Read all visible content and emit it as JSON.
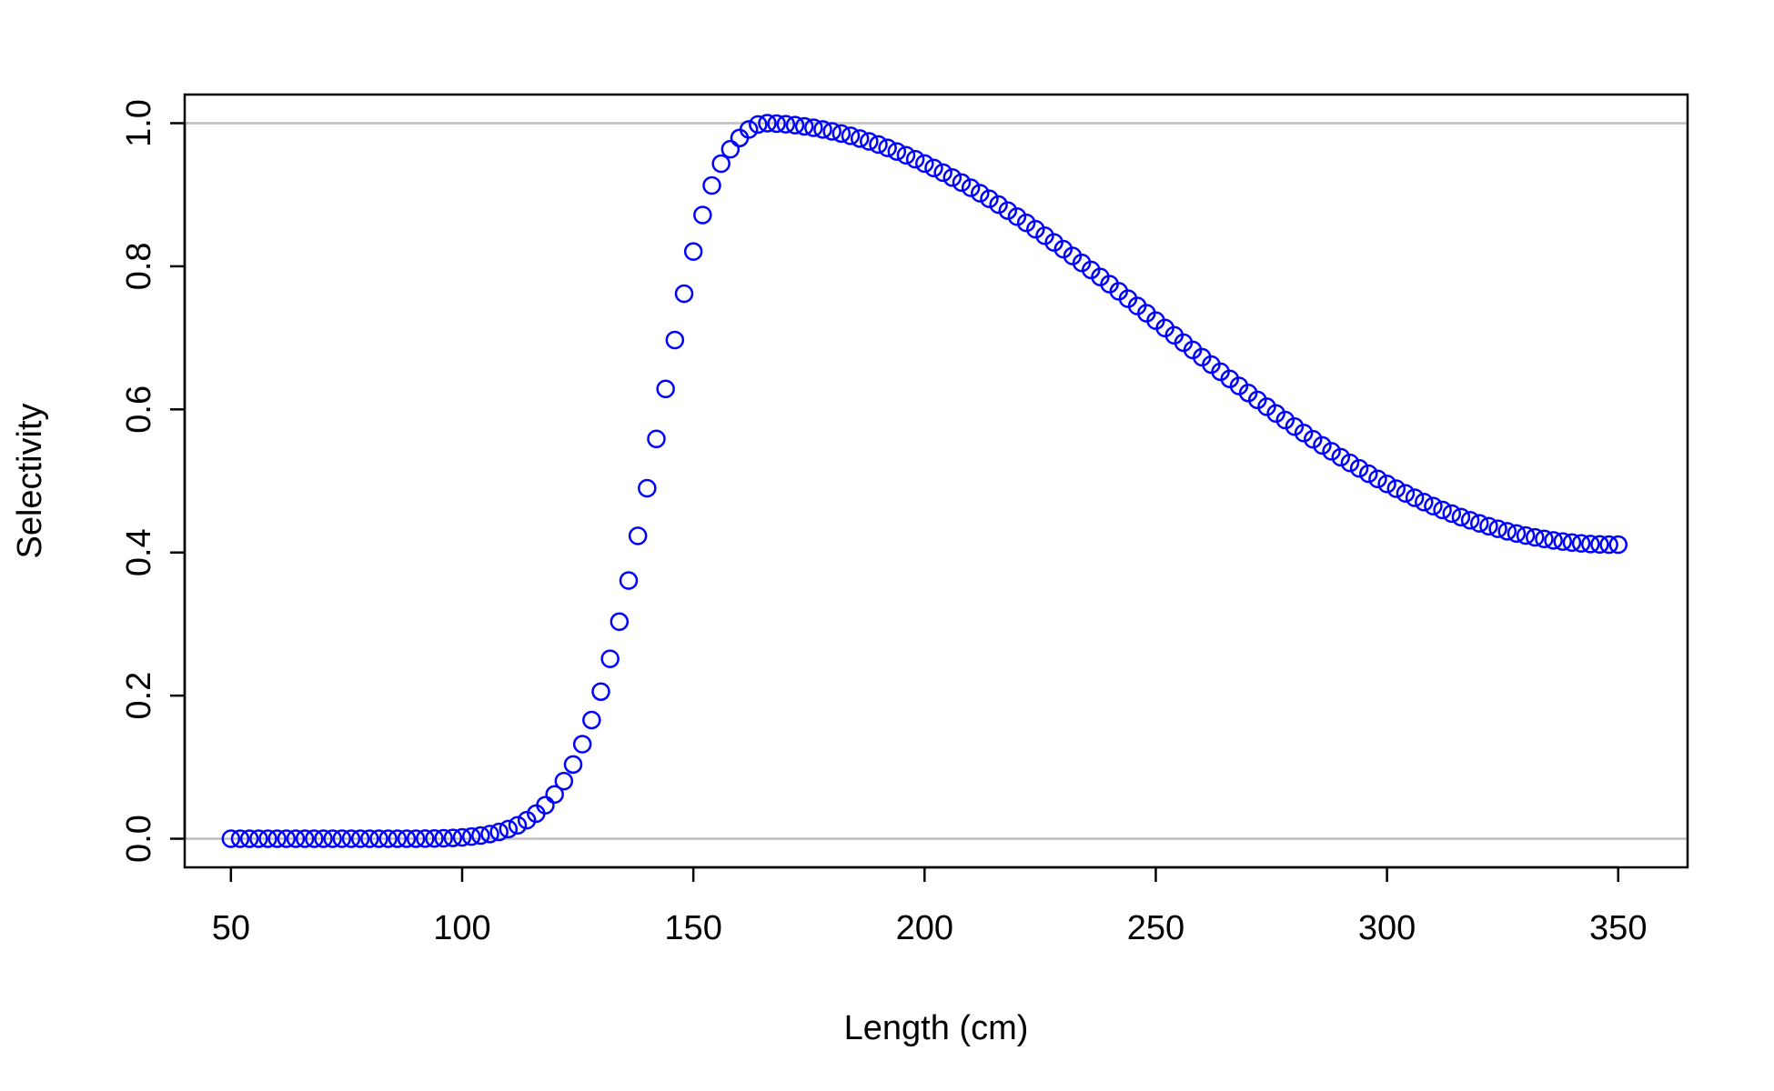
{
  "chart_data": {
    "type": "scatter",
    "title": "",
    "xlabel": "Length (cm)",
    "ylabel": "Selectivity",
    "xlim": [
      40,
      365
    ],
    "ylim": [
      -0.04,
      1.04
    ],
    "xticks": [
      50,
      100,
      150,
      200,
      250,
      300,
      350
    ],
    "xtick_labels": [
      "50",
      "100",
      "150",
      "200",
      "250",
      "300",
      "350"
    ],
    "yticks": [
      0.0,
      0.2,
      0.4,
      0.6,
      0.8,
      1.0
    ],
    "ytick_labels": [
      "0.0",
      "0.2",
      "0.4",
      "0.6",
      "0.8",
      "1.0"
    ],
    "reference_lines_y": [
      0,
      1
    ],
    "grid": false,
    "legend": "none",
    "marker": "open-circle",
    "point_color": "#0000ff",
    "reference_line_color": "#bebebe",
    "series": [
      {
        "x": [
          50,
          52,
          54,
          56,
          58,
          60,
          62,
          64,
          66,
          68,
          70,
          72,
          74,
          76,
          78,
          80,
          82,
          84,
          86,
          88,
          90,
          92,
          94,
          96,
          98,
          100,
          102,
          104,
          106,
          108,
          110,
          112,
          114,
          116,
          118,
          120,
          122,
          124,
          126,
          128,
          130,
          132,
          134,
          136,
          138,
          140,
          142,
          144,
          146,
          148,
          150,
          152,
          154,
          156,
          158,
          160,
          162,
          164,
          166,
          168,
          170,
          172,
          174,
          176,
          178,
          180,
          182,
          184,
          186,
          188,
          190,
          192,
          194,
          196,
          198,
          200,
          202,
          204,
          206,
          208,
          210,
          212,
          214,
          216,
          218,
          220,
          222,
          224,
          226,
          228,
          230,
          232,
          234,
          236,
          238,
          240,
          242,
          244,
          246,
          248,
          250,
          252,
          254,
          256,
          258,
          260,
          262,
          264,
          266,
          268,
          270,
          272,
          274,
          276,
          278,
          280,
          282,
          284,
          286,
          288,
          290,
          292,
          294,
          296,
          298,
          300,
          302,
          304,
          306,
          308,
          310,
          312,
          314,
          316,
          318,
          320,
          322,
          324,
          326,
          328,
          330,
          332,
          334,
          336,
          338,
          340,
          342,
          344,
          346,
          348,
          350
        ],
        "y": [
          0.0,
          0.0,
          0.0,
          0.0,
          0.0,
          0.0,
          0.0,
          0.0,
          0.0,
          0.0,
          0.0,
          0.0,
          0.0,
          0.0,
          0.0,
          0.0,
          0.0,
          0.0,
          0.0,
          0.0,
          0.0001,
          0.0002,
          0.0004,
          0.0007,
          0.0012,
          0.0019,
          0.003,
          0.0045,
          0.0066,
          0.0095,
          0.0135,
          0.0188,
          0.0259,
          0.0351,
          0.0469,
          0.0619,
          0.0806,
          0.1038,
          0.1321,
          0.1659,
          0.2056,
          0.2514,
          0.3033,
          0.3608,
          0.4233,
          0.4898,
          0.5588,
          0.6286,
          0.6969,
          0.7617,
          0.8206,
          0.8716,
          0.9129,
          0.9434,
          0.9636,
          0.9794,
          0.9912,
          0.9982,
          0.9999,
          0.9994,
          0.9985,
          0.9972,
          0.9956,
          0.9936,
          0.9913,
          0.9886,
          0.9856,
          0.9823,
          0.9786,
          0.9745,
          0.9702,
          0.9655,
          0.9605,
          0.9552,
          0.9496,
          0.9436,
          0.9374,
          0.9309,
          0.9241,
          0.917,
          0.9097,
          0.9021,
          0.8943,
          0.8862,
          0.8779,
          0.8694,
          0.8607,
          0.8518,
          0.8427,
          0.8334,
          0.824,
          0.8145,
          0.8048,
          0.795,
          0.7851,
          0.7751,
          0.765,
          0.7548,
          0.7446,
          0.7344,
          0.7241,
          0.7138,
          0.7036,
          0.6933,
          0.6831,
          0.6729,
          0.6627,
          0.6527,
          0.6427,
          0.6328,
          0.623,
          0.6133,
          0.6037,
          0.5943,
          0.5851,
          0.576,
          0.567,
          0.5583,
          0.5497,
          0.5414,
          0.5332,
          0.5253,
          0.5176,
          0.5101,
          0.5029,
          0.4959,
          0.4892,
          0.4827,
          0.4765,
          0.4705,
          0.4649,
          0.4595,
          0.4544,
          0.4495,
          0.445,
          0.4408,
          0.4368,
          0.4331,
          0.4297,
          0.4266,
          0.4238,
          0.4212,
          0.419,
          0.417,
          0.4153,
          0.4139,
          0.4128,
          0.4119,
          0.4113,
          0.411,
          0.411
        ]
      }
    ]
  }
}
